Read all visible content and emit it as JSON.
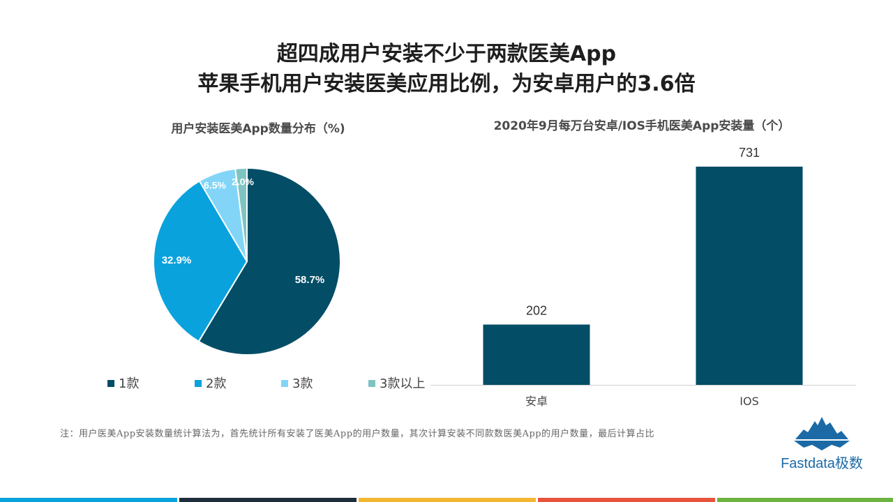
{
  "header": {
    "title_line1": "超四成用户安装不少于两款医美App",
    "title_line2": "苹果手机用户安装医美应用比例，为安卓用户的3.6倍"
  },
  "chart_data": [
    {
      "type": "pie",
      "title": "用户安装医美App数量分布（%)",
      "categories": [
        "1款",
        "2款",
        "3款",
        "3款以上"
      ],
      "values": [
        58.7,
        32.9,
        6.5,
        2.0
      ],
      "labels": [
        "58.7%",
        "32.9%",
        "6.5%",
        "2.0%"
      ],
      "colors": [
        "#034d66",
        "#0aa2dc",
        "#82d5f7",
        "#7ec4c2"
      ],
      "legend": "bottom"
    },
    {
      "type": "bar",
      "title": "2020年9月每万台安卓/IOS手机医美App安装量（个）",
      "categories": [
        "安卓",
        "IOS"
      ],
      "values": [
        202,
        731
      ],
      "labels": [
        "202",
        "731"
      ],
      "color": "#034d66",
      "ylim": [
        0,
        731
      ],
      "grid": false
    }
  ],
  "footer": {
    "note": "注：用户医美App安装数量统计算法为，首先统计所有安装了医美App的用户数量，其次计算安装不同款数医美App的用户数量，最后计算占比",
    "brand": "Fastdata极数"
  },
  "theme": {
    "stripes": [
      "#0aa2dc",
      "#1e2d3c",
      "#f2b630",
      "#e8533c",
      "#6db33f"
    ]
  }
}
